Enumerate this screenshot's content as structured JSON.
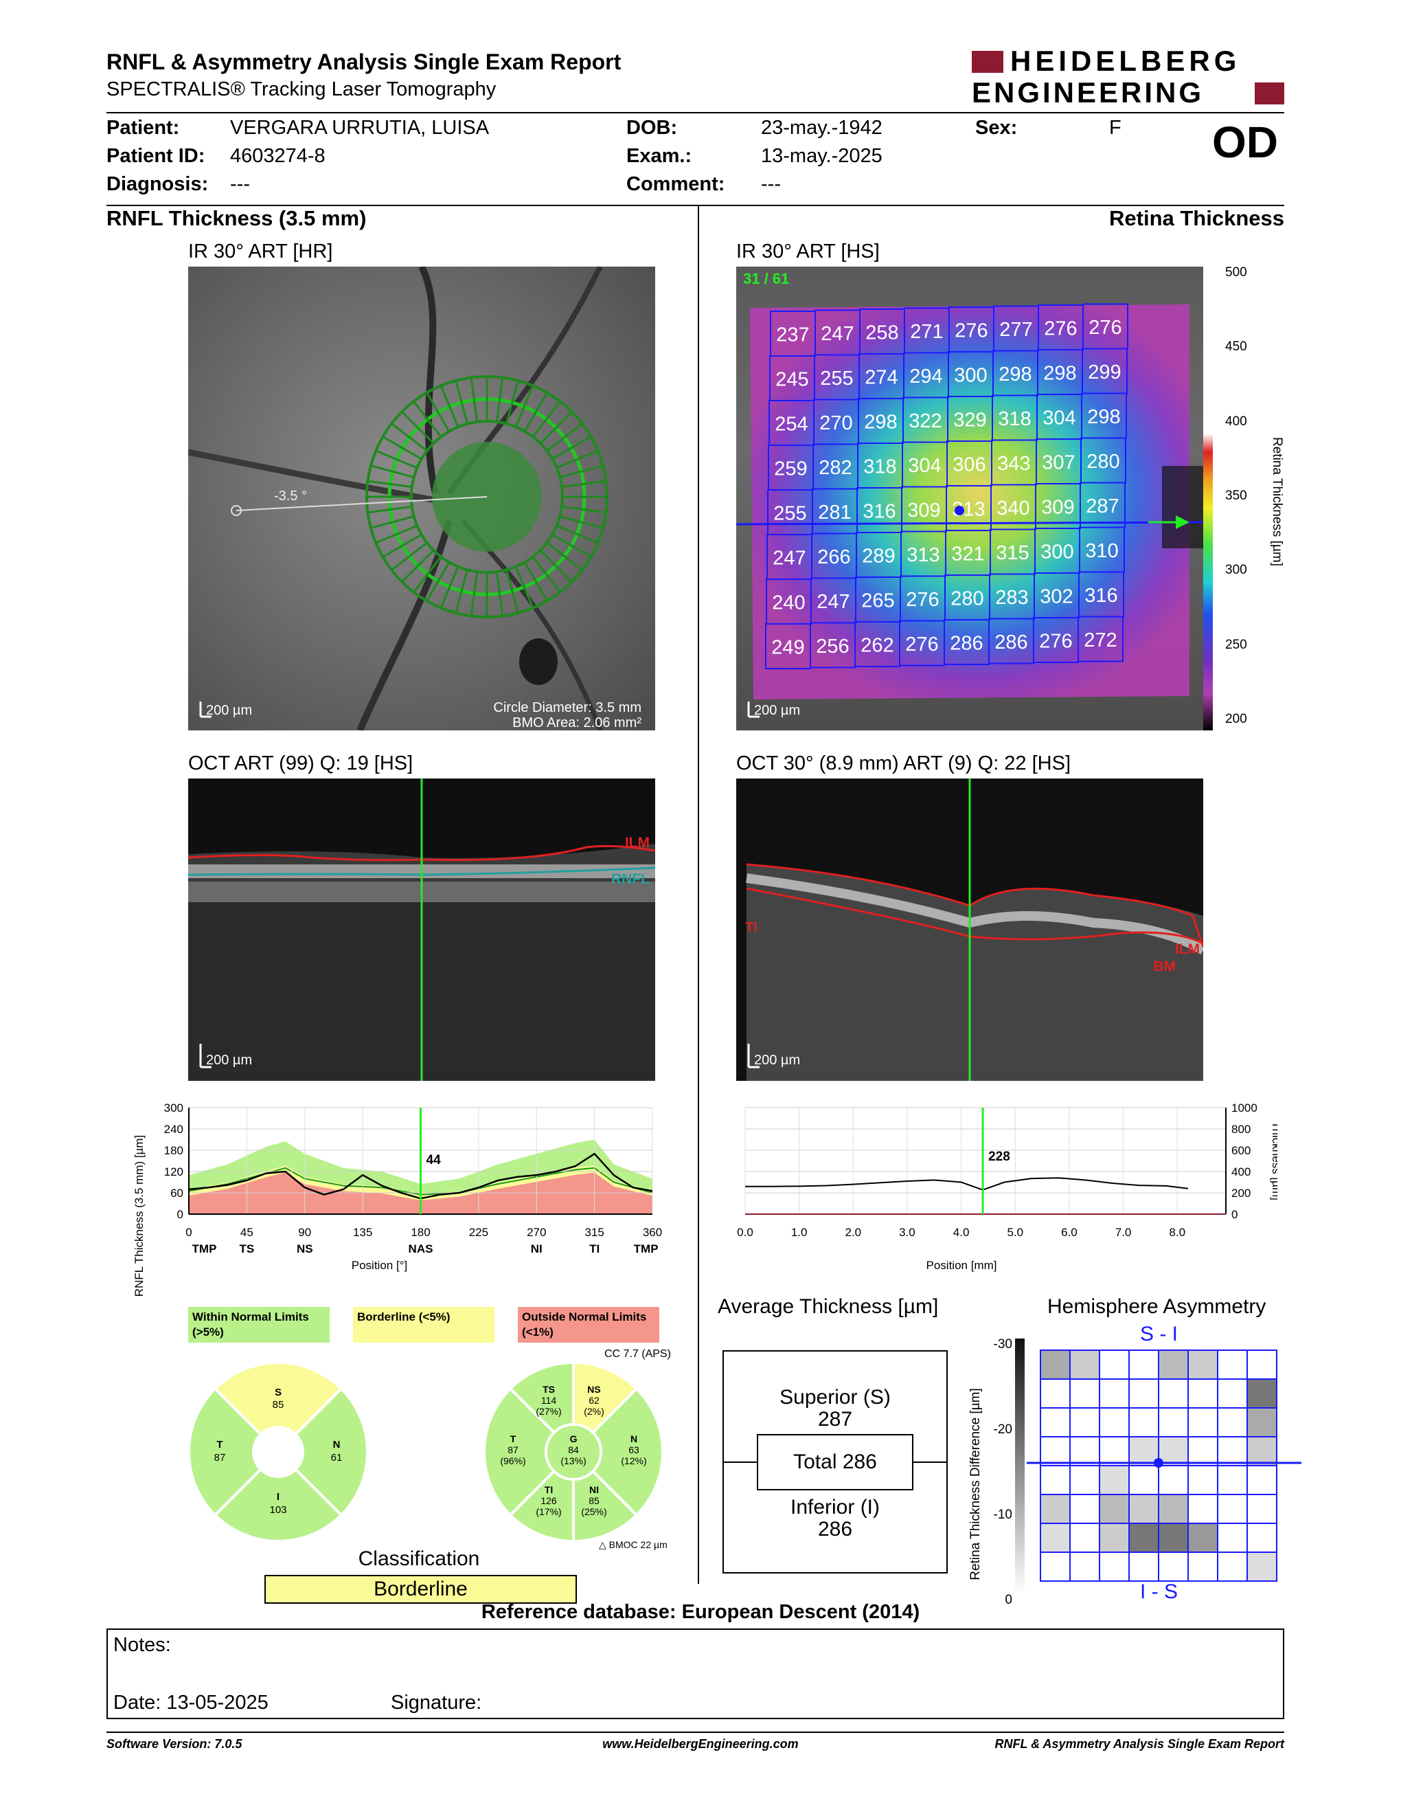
{
  "header": {
    "title": "RNFL & Asymmetry Analysis Single Exam Report",
    "subtitle": "SPECTRALIS® Tracking Laser Tomography",
    "brand_line1": "HEIDELBERG",
    "brand_line2": "ENGINEERING",
    "eye": "OD"
  },
  "patient": {
    "patient_label": "Patient:",
    "patient_value": "VERGARA URRUTIA, LUISA",
    "id_label": "Patient ID:",
    "id_value": "4603274-8",
    "diagnosis_label": "Diagnosis:",
    "diagnosis_value": "---",
    "dob_label": "DOB:",
    "dob_value": "23-may.-1942",
    "exam_label": "Exam.:",
    "exam_value": "13-may.-2025",
    "comment_label": "Comment:",
    "comment_value": "---",
    "sex_label": "Sex:",
    "sex_value": "F"
  },
  "left": {
    "section_title": "RNFL Thickness (3.5 mm)",
    "ir_title": "IR 30° ART [HR]",
    "ir_angle": "-3.5 °",
    "ir_scale": "200 µm",
    "ir_circle": "Circle Diameter: 3.5 mm",
    "ir_bmo": "BMO Area: 2.06 mm²",
    "oct_title": "OCT ART (99) Q: 19 [HS]",
    "oct_ilm": "ILM",
    "oct_rnfl": "RNFL",
    "oct_scale": "200 µm"
  },
  "right": {
    "section_title": "Retina Thickness",
    "ir_title": "IR 30° ART [HS]",
    "ir_counter": "31 / 61",
    "ir_scale": "200 µm",
    "colorbar_ticks": [
      "500",
      "450",
      "400",
      "350",
      "300",
      "250",
      "200"
    ],
    "colorbar_label": "Retina Thickness [µm]",
    "oct_title": "OCT 30° (8.9 mm) ART (9) Q: 22 [HS]",
    "oct_ilm": "ILM",
    "oct_bm": "BM",
    "oct_tl": "TI",
    "oct_scale": "200 µm"
  },
  "grid_values": [
    [
      "237",
      "247",
      "258",
      "271",
      "276",
      "277",
      "276",
      "276"
    ],
    [
      "245",
      "255",
      "274",
      "294",
      "300",
      "298",
      "298",
      "299"
    ],
    [
      "254",
      "270",
      "298",
      "322",
      "329",
      "318",
      "304",
      "298"
    ],
    [
      "259",
      "282",
      "318",
      "304",
      "306",
      "343",
      "307",
      "280"
    ],
    [
      "255",
      "281",
      "316",
      "309",
      "313",
      "340",
      "309",
      "287"
    ],
    [
      "247",
      "266",
      "289",
      "313",
      "321",
      "315",
      "300",
      "310"
    ],
    [
      "240",
      "247",
      "265",
      "276",
      "280",
      "283",
      "302",
      "316"
    ],
    [
      "249",
      "256",
      "262",
      "276",
      "286",
      "286",
      "276",
      "272"
    ]
  ],
  "chart_data": [
    {
      "type": "line",
      "ylabel": "RNFL Thickness (3.5 mm) [µm]",
      "xlabel": "Position [°]",
      "ylim": [
        0,
        300
      ],
      "yticks": [
        "300",
        "240",
        "180",
        "120",
        "60",
        "0"
      ],
      "xticks": [
        "0",
        "45",
        "90",
        "135",
        "180",
        "225",
        "270",
        "315",
        "360"
      ],
      "sector_labels": [
        "TMP",
        "TS",
        "NS",
        "NAS",
        "NI",
        "TI",
        "TMP"
      ],
      "marker_value": "44",
      "x": [
        0,
        15,
        30,
        45,
        60,
        75,
        90,
        105,
        120,
        135,
        150,
        165,
        180,
        195,
        210,
        225,
        240,
        255,
        270,
        285,
        300,
        315,
        330,
        345,
        360
      ],
      "series": [
        {
          "values": [
            70,
            75,
            82,
            95,
            115,
            120,
            75,
            55,
            70,
            110,
            80,
            60,
            44,
            55,
            60,
            75,
            95,
            105,
            110,
            120,
            135,
            170,
            110,
            75,
            65
          ]
        }
      ]
    },
    {
      "type": "line",
      "ylabel": "Thickness [µm]",
      "xlabel": "Position [mm]",
      "ylim": [
        0,
        1000
      ],
      "yticks": [
        "1000",
        "800",
        "600",
        "400",
        "200",
        "0"
      ],
      "xticks": [
        "0.0",
        "1.0",
        "2.0",
        "3.0",
        "4.0",
        "5.0",
        "6.0",
        "7.0",
        "8.0"
      ],
      "marker_value": "228",
      "x": [
        0,
        0.5,
        1,
        1.5,
        2,
        2.5,
        3,
        3.5,
        4,
        4.4,
        4.8,
        5.3,
        5.8,
        6.3,
        6.8,
        7.3,
        7.8,
        8.2
      ],
      "series": [
        {
          "values": [
            260,
            260,
            262,
            268,
            280,
            295,
            310,
            320,
            300,
            228,
            300,
            335,
            340,
            320,
            290,
            270,
            265,
            240
          ]
        }
      ]
    }
  ],
  "legend": {
    "wnl": "Within Normal Limits (>5%)",
    "bl": "Borderline (<5%)",
    "onl": "Outside Normal Limits (<1%)"
  },
  "circle1": {
    "s": "S",
    "s_val": "85",
    "t": "T",
    "t_val": "87",
    "n": "N",
    "n_val": "61",
    "i": "I",
    "i_val": "103"
  },
  "circle2": {
    "cc": "CC 7.7 (APS)",
    "ts": "TS",
    "ts_v": "114",
    "ts_p": "(27%)",
    "ns": "NS",
    "ns_v": "62",
    "ns_p": "(2%)",
    "t": "T",
    "t_v": "87",
    "t_p": "(96%)",
    "g": "G",
    "g_v": "84",
    "g_p": "(13%)",
    "n": "N",
    "n_v": "63",
    "n_p": "(12%)",
    "ti": "TI",
    "ti_v": "126",
    "ti_p": "(17%)",
    "ni": "NI",
    "ni_v": "85",
    "ni_p": "(25%)",
    "bmo": "BMOC 22 µm"
  },
  "classification": {
    "label": "Classification",
    "value": "Borderline"
  },
  "average": {
    "title": "Average Thickness [µm]",
    "sup_label": "Superior (S)",
    "sup_val": "287",
    "total": "Total 286",
    "inf_label": "Inferior (I)",
    "inf_val": "286"
  },
  "asymmetry": {
    "title": "Hemisphere Asymmetry",
    "top": "S - I",
    "bottom": "I - S",
    "bar_label": "Retina Thickness Difference [µm]",
    "bar_ticks": [
      "-30",
      "-20",
      "-10",
      "0"
    ]
  },
  "reference": "Reference database: European Descent (2014)",
  "notes": {
    "notes_label": "Notes:",
    "date_label": "Date: 13-05-2025",
    "signature_label": "Signature:"
  },
  "footer": {
    "version": "Software Version: 7.0.5",
    "url": "www.HeidelbergEngineering.com",
    "report": "RNFL & Asymmetry Analysis Single Exam Report"
  },
  "colors": {
    "wnl": "#b8f08a",
    "bl": "#fafa96",
    "onl": "#f4968c",
    "grid_line": "#1a1aff",
    "accent_red": "#8c1b2f"
  }
}
